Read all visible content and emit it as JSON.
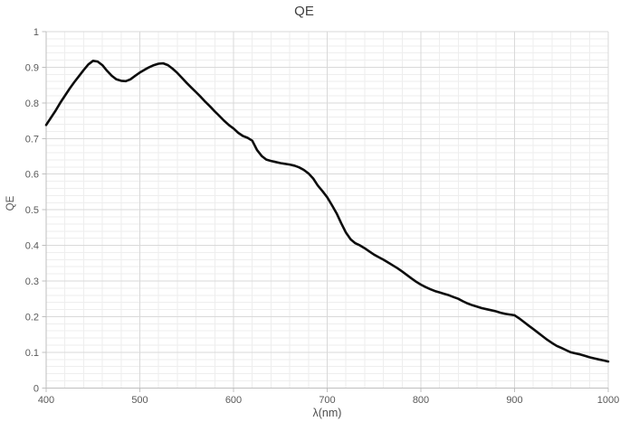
{
  "colors": {
    "background": "#ffffff",
    "curve": "#0d0d0d",
    "major_grid": "#d9d9d9",
    "minor_grid": "#eeeeee",
    "axis_line": "#bfbfbf",
    "tick_text": "#595959",
    "title_text": "#404040"
  },
  "chart_data": {
    "type": "line",
    "title": "QE",
    "xlabel": "λ(nm)",
    "ylabel": "QE",
    "xlim": [
      400,
      1000
    ],
    "ylim": [
      0,
      1
    ],
    "x_tick_values": [
      400,
      500,
      600,
      700,
      800,
      900,
      1000
    ],
    "x_tick_labels": [
      "400",
      "500",
      "600",
      "700",
      "800",
      "900",
      "1000"
    ],
    "y_tick_values": [
      0,
      0.1,
      0.2,
      0.3,
      0.4,
      0.5,
      0.6,
      0.7,
      0.8,
      0.9,
      1
    ],
    "y_tick_labels": [
      "0",
      "0.1",
      "0.2",
      "0.3",
      "0.4",
      "0.5",
      "0.6",
      "0.7",
      "0.8",
      "0.9",
      "1"
    ],
    "x_minor_step": 20,
    "y_minor_step": 0.02,
    "grid": "major+minor",
    "legend": "none",
    "series": [
      {
        "name": "QE",
        "color": "#0d0d0d",
        "x": [
          400,
          405,
          410,
          415,
          420,
          425,
          430,
          435,
          440,
          445,
          450,
          455,
          460,
          465,
          470,
          475,
          480,
          485,
          490,
          495,
          500,
          505,
          510,
          515,
          520,
          525,
          530,
          535,
          540,
          545,
          550,
          555,
          560,
          565,
          570,
          575,
          580,
          585,
          590,
          595,
          600,
          605,
          610,
          615,
          620,
          625,
          630,
          635,
          640,
          645,
          650,
          655,
          660,
          665,
          670,
          675,
          680,
          685,
          690,
          695,
          700,
          705,
          710,
          715,
          720,
          725,
          730,
          735,
          740,
          745,
          750,
          755,
          760,
          765,
          770,
          775,
          780,
          785,
          790,
          795,
          800,
          805,
          810,
          815,
          820,
          825,
          830,
          835,
          840,
          845,
          850,
          855,
          860,
          865,
          870,
          875,
          880,
          885,
          890,
          895,
          900,
          905,
          910,
          915,
          920,
          925,
          930,
          935,
          940,
          945,
          950,
          955,
          960,
          965,
          970,
          975,
          980,
          985,
          990,
          995,
          1000
        ],
        "y": [
          0.738,
          0.758,
          0.778,
          0.8,
          0.82,
          0.84,
          0.858,
          0.875,
          0.892,
          0.908,
          0.918,
          0.916,
          0.906,
          0.89,
          0.876,
          0.866,
          0.862,
          0.861,
          0.866,
          0.876,
          0.885,
          0.893,
          0.9,
          0.906,
          0.91,
          0.911,
          0.906,
          0.896,
          0.884,
          0.87,
          0.856,
          0.843,
          0.83,
          0.817,
          0.803,
          0.79,
          0.776,
          0.763,
          0.75,
          0.738,
          0.728,
          0.716,
          0.707,
          0.702,
          0.694,
          0.668,
          0.651,
          0.641,
          0.637,
          0.634,
          0.631,
          0.629,
          0.627,
          0.624,
          0.619,
          0.612,
          0.602,
          0.588,
          0.568,
          0.552,
          0.535,
          0.513,
          0.49,
          0.462,
          0.436,
          0.417,
          0.406,
          0.4,
          0.392,
          0.383,
          0.374,
          0.367,
          0.36,
          0.352,
          0.344,
          0.336,
          0.327,
          0.317,
          0.307,
          0.298,
          0.29,
          0.283,
          0.277,
          0.272,
          0.268,
          0.264,
          0.26,
          0.255,
          0.25,
          0.243,
          0.237,
          0.232,
          0.228,
          0.224,
          0.221,
          0.218,
          0.215,
          0.211,
          0.208,
          0.206,
          0.204,
          0.195,
          0.185,
          0.175,
          0.165,
          0.155,
          0.145,
          0.135,
          0.126,
          0.118,
          0.112,
          0.106,
          0.1,
          0.097,
          0.094,
          0.09,
          0.086,
          0.083,
          0.08,
          0.077,
          0.074
        ]
      }
    ]
  }
}
